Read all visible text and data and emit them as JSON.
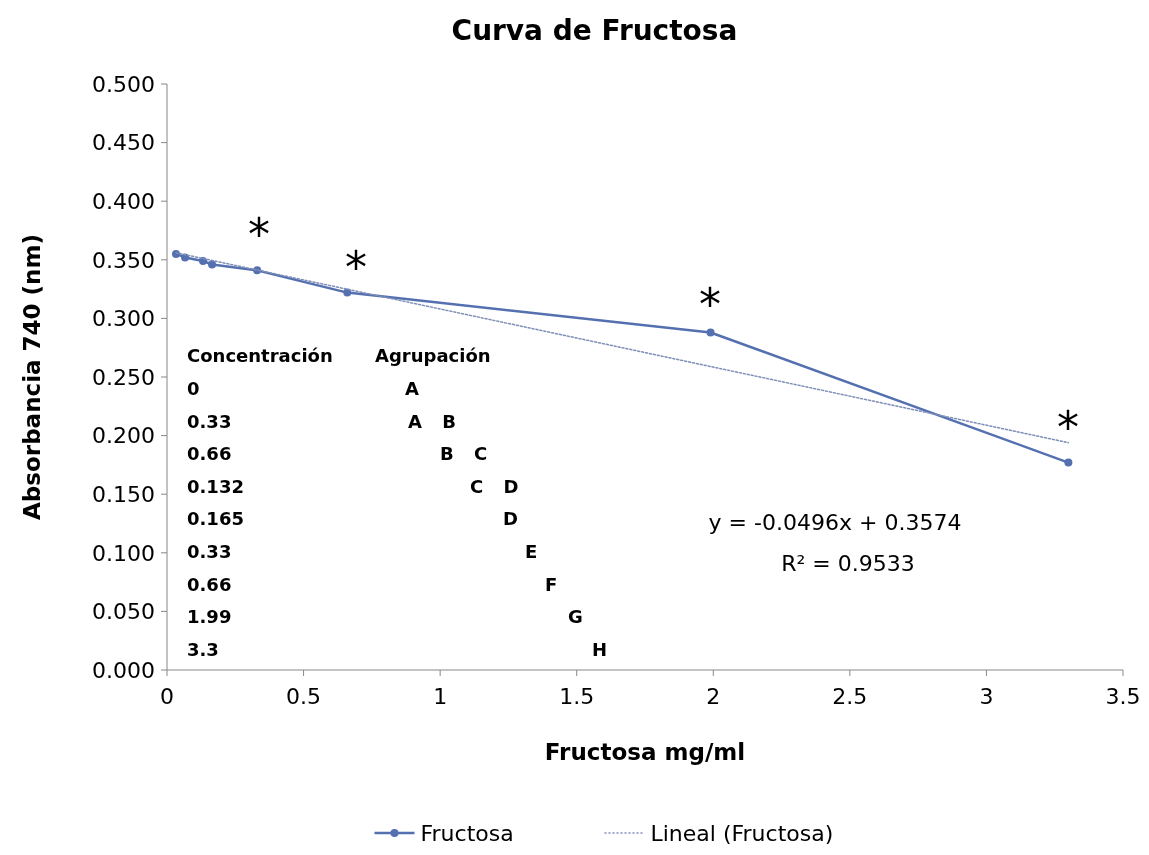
{
  "chart_data": {
    "type": "line",
    "title": "Curva de Fructosa",
    "xlabel": "Fructosa mg/ml",
    "ylabel": "Absorbancia 740 (nm)",
    "xlim": [
      0,
      3.5
    ],
    "xticks": [
      0,
      0.5,
      1,
      1.5,
      2,
      2.5,
      3,
      3.5
    ],
    "ylim": [
      0,
      0.5
    ],
    "yticks": [
      {
        "value": 0,
        "label": "0.000"
      },
      {
        "value": 0.05,
        "label": "0.050"
      },
      {
        "value": 0.1,
        "label": "0.100"
      },
      {
        "value": 0.15,
        "label": "0.150"
      },
      {
        "value": 0.2,
        "label": "0.200"
      },
      {
        "value": 0.25,
        "label": "0.250"
      },
      {
        "value": 0.3,
        "label": "0.300"
      },
      {
        "value": 0.35,
        "label": "0.350"
      },
      {
        "value": 0.4,
        "label": "0.400"
      },
      {
        "value": 0.45,
        "label": "0.450"
      },
      {
        "value": 0.5,
        "label": "0.500"
      }
    ],
    "grid": false,
    "legend": "bottom",
    "series": [
      {
        "name": "Fructosa",
        "color": "#5470b0",
        "marker": "circle",
        "line_style": "solid",
        "x": [
          0.033,
          0.066,
          0.132,
          0.165,
          0.33,
          0.66,
          1.99,
          3.3
        ],
        "values": [
          0.355,
          0.352,
          0.349,
          0.346,
          0.341,
          0.322,
          0.288,
          0.177
        ]
      },
      {
        "name": "Lineal (Fructosa)",
        "color": "#7f8fb8",
        "marker": "none",
        "line_style": "dotted",
        "x": [
          0.033,
          3.3
        ],
        "values": [
          0.356,
          0.194
        ]
      }
    ],
    "annotations": [
      "Concentración",
      "Agrupación",
      "0",
      "0.33",
      "0.66",
      "0.132",
      "0.165",
      "0.33",
      "0.66",
      "1.99",
      "3.3",
      "A",
      "A B",
      "B C",
      "C D",
      "D",
      "E",
      "F",
      "G",
      "H",
      "y = -0.0496x + 0.3574",
      "R² = 0.9533",
      "*",
      "*",
      "*",
      "*"
    ]
  }
}
